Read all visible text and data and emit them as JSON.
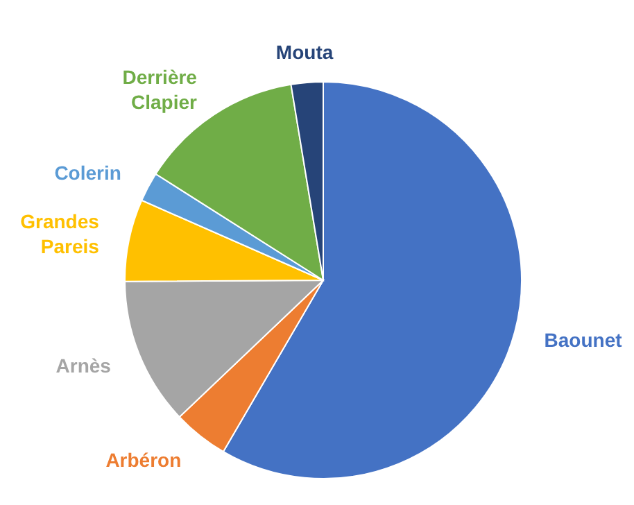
{
  "chart_data": {
    "type": "pie",
    "categories": [
      "Baounet",
      "Arbéron",
      "Arnès",
      "Grandes Pareis",
      "Colerin",
      "Derrière Clapier",
      "Mouta"
    ],
    "values": [
      58.4,
      4.5,
      12,
      6.7,
      2.4,
      13.4,
      2.6
    ],
    "colors": [
      "#4472c4",
      "#ed7d31",
      "#a5a5a5",
      "#ffc000",
      "#5b9bd5",
      "#70ad47",
      "#264478"
    ]
  }
}
